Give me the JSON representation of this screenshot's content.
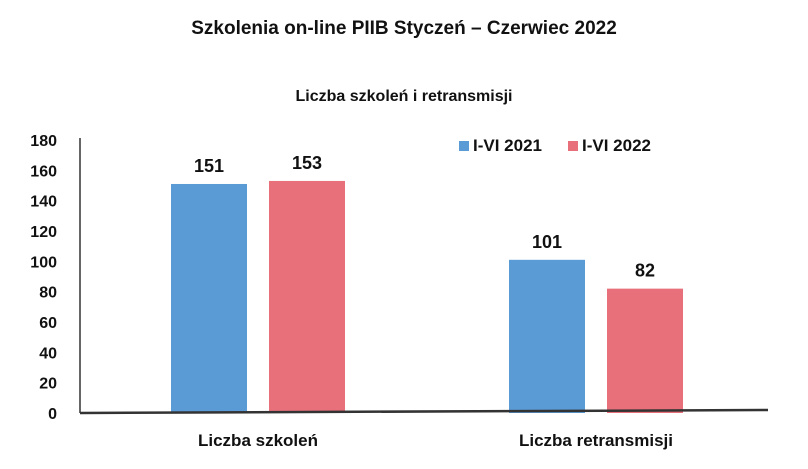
{
  "title": "Szkolenia on-line PIIB Styczeń – Czerwiec 2022",
  "colors": {
    "series_2021": "#5b9bd5",
    "series_2022": "#e8707b"
  },
  "chart_data": {
    "type": "bar",
    "title": "Liczba szkoleń i retransmisji",
    "categories": [
      "Liczba szkoleń",
      "Liczba retransmisji"
    ],
    "series": [
      {
        "name": "I-VI 2021",
        "values": [
          151,
          101
        ]
      },
      {
        "name": "I-VI 2022",
        "values": [
          153,
          82
        ]
      }
    ],
    "xlabel": "",
    "ylabel": "",
    "ylim": [
      0,
      180
    ],
    "yticks": [
      0,
      20,
      40,
      60,
      80,
      100,
      120,
      140,
      160,
      180
    ],
    "grid": false,
    "legend": "top-right"
  }
}
